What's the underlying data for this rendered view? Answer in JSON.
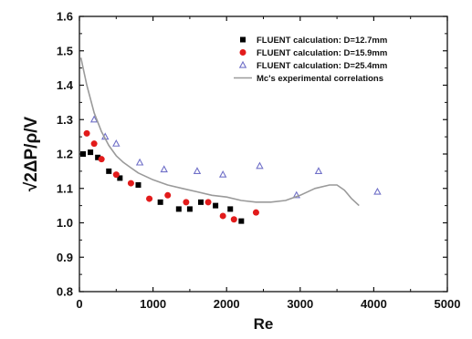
{
  "chart_data": {
    "type": "scatter",
    "title": "",
    "xlabel": "Re",
    "ylabel": "√2ΔP/ρ/V",
    "xlim": [
      0,
      5000
    ],
    "ylim": [
      0.8,
      1.6
    ],
    "x_ticks": [
      "0",
      "1000",
      "2000",
      "3000",
      "4000",
      "5000"
    ],
    "y_ticks": [
      "0.8",
      "0.9",
      "1.0",
      "1.1",
      "1.2",
      "1.3",
      "1.4",
      "1.5",
      "1.6"
    ],
    "grid": false,
    "legend_position": "top-right",
    "series": [
      {
        "name": "FLUENT calculation: D=12.7mm",
        "marker": "square",
        "color": "#000000",
        "points": [
          [
            50,
            1.2
          ],
          [
            150,
            1.205
          ],
          [
            250,
            1.19
          ],
          [
            400,
            1.15
          ],
          [
            550,
            1.13
          ],
          [
            800,
            1.11
          ],
          [
            1100,
            1.06
          ],
          [
            1350,
            1.04
          ],
          [
            1500,
            1.04
          ],
          [
            1650,
            1.06
          ],
          [
            1850,
            1.05
          ],
          [
            2050,
            1.04
          ],
          [
            2200,
            1.005
          ]
        ]
      },
      {
        "name": "FLUENT calculation: D=15.9mm",
        "marker": "circle",
        "color": "#e21b1b",
        "points": [
          [
            100,
            1.26
          ],
          [
            200,
            1.23
          ],
          [
            300,
            1.185
          ],
          [
            500,
            1.14
          ],
          [
            700,
            1.115
          ],
          [
            950,
            1.07
          ],
          [
            1200,
            1.08
          ],
          [
            1450,
            1.06
          ],
          [
            1750,
            1.06
          ],
          [
            1950,
            1.02
          ],
          [
            2100,
            1.01
          ],
          [
            2400,
            1.03
          ]
        ]
      },
      {
        "name": "FLUENT calculation: D=25.4mm",
        "marker": "triangle",
        "color": "#7070c8",
        "points": [
          [
            200,
            1.3
          ],
          [
            350,
            1.25
          ],
          [
            500,
            1.23
          ],
          [
            820,
            1.175
          ],
          [
            1150,
            1.155
          ],
          [
            1600,
            1.15
          ],
          [
            1950,
            1.14
          ],
          [
            2450,
            1.165
          ],
          [
            2950,
            1.08
          ],
          [
            3250,
            1.15
          ],
          [
            4050,
            1.09
          ]
        ]
      },
      {
        "name": "Mc's experimental correlations",
        "marker": "line",
        "color": "#9a9a9a",
        "points": [
          [
            20,
            1.48
          ],
          [
            100,
            1.4
          ],
          [
            200,
            1.32
          ],
          [
            300,
            1.265
          ],
          [
            400,
            1.225
          ],
          [
            500,
            1.195
          ],
          [
            600,
            1.175
          ],
          [
            700,
            1.16
          ],
          [
            800,
            1.145
          ],
          [
            1000,
            1.125
          ],
          [
            1200,
            1.11
          ],
          [
            1400,
            1.1
          ],
          [
            1600,
            1.09
          ],
          [
            1800,
            1.08
          ],
          [
            2000,
            1.075
          ],
          [
            2200,
            1.065
          ],
          [
            2400,
            1.06
          ],
          [
            2600,
            1.06
          ],
          [
            2800,
            1.065
          ],
          [
            3000,
            1.08
          ],
          [
            3200,
            1.1
          ],
          [
            3400,
            1.11
          ],
          [
            3500,
            1.11
          ],
          [
            3600,
            1.095
          ],
          [
            3700,
            1.07
          ],
          [
            3800,
            1.05
          ]
        ]
      }
    ]
  }
}
